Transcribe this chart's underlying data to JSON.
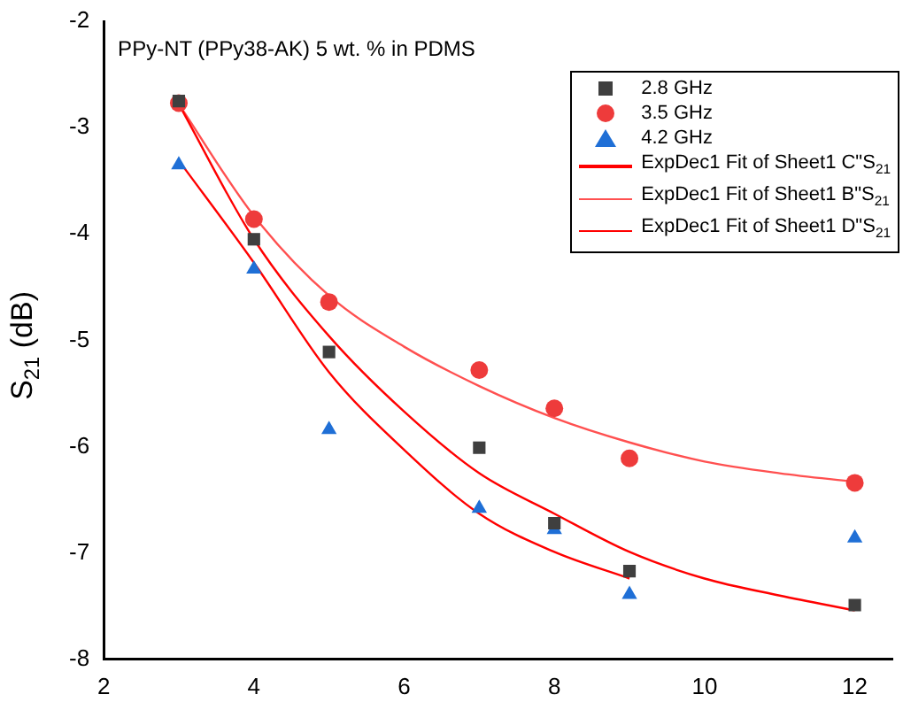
{
  "chart_data": {
    "type": "scatter",
    "title": "PPy-NT (PPy38-AK) 5 wt. % in PDMS",
    "ylabel": "S$_{21}$ (dB)",
    "x": [
      3,
      4,
      5,
      7,
      8,
      9,
      12
    ],
    "xlim": [
      2,
      12.5
    ],
    "xticks": [
      2,
      4,
      6,
      8,
      10,
      12
    ],
    "ylim": [
      -8,
      -2
    ],
    "yticks": [
      -8,
      -7,
      -6,
      -5,
      -4,
      -3,
      -2
    ],
    "grid": false,
    "legend": "top right",
    "series": [
      {
        "name": "2.8 GHz",
        "color": "#3f3f3f",
        "marker": "square",
        "values": [
          -2.75,
          -4.05,
          -5.11,
          -6.01,
          -6.72,
          -7.17,
          -7.49
        ]
      },
      {
        "name": "3.5 GHz",
        "color": "#ee3b3b",
        "marker": "circle",
        "values": [
          -2.77,
          -3.86,
          -4.64,
          -5.28,
          -5.64,
          -6.11,
          -6.34
        ]
      },
      {
        "name": "4.2 GHz",
        "color": "#1f6fd6",
        "marker": "triangle",
        "values": [
          -3.35,
          -4.33,
          -5.84,
          -6.58,
          -6.78,
          -7.39,
          -6.86
        ]
      },
      {
        "name": "ExpDec1 Fit of Sheet1 C\"S$_{21}$",
        "type": "line",
        "color": "#ff0000",
        "marker": "none",
        "x": [
          3,
          4,
          5,
          6,
          7,
          8,
          9,
          10,
          11,
          12
        ],
        "values": [
          -2.78,
          -4.05,
          -4.96,
          -5.67,
          -6.25,
          -6.63,
          -6.99,
          -7.24,
          -7.4,
          -7.54
        ]
      },
      {
        "name": "ExpDec1 Fit of Sheet1 B\"S$_{21}$",
        "type": "line",
        "color": "#ff5050",
        "marker": "none",
        "x": [
          3,
          4,
          5,
          6,
          7,
          8,
          9,
          10,
          11,
          12
        ],
        "values": [
          -2.78,
          -3.83,
          -4.58,
          -5.06,
          -5.43,
          -5.73,
          -5.96,
          -6.14,
          -6.25,
          -6.33
        ]
      },
      {
        "name": "ExpDec1 Fit of Sheet1 D\"S$_{21}$",
        "type": "line",
        "color": "#ff0000",
        "marker": "none",
        "x": [
          3,
          4,
          5,
          6,
          7,
          8,
          9
        ],
        "values": [
          -3.31,
          -4.27,
          -5.3,
          -6.03,
          -6.63,
          -6.99,
          -7.24
        ]
      }
    ]
  }
}
